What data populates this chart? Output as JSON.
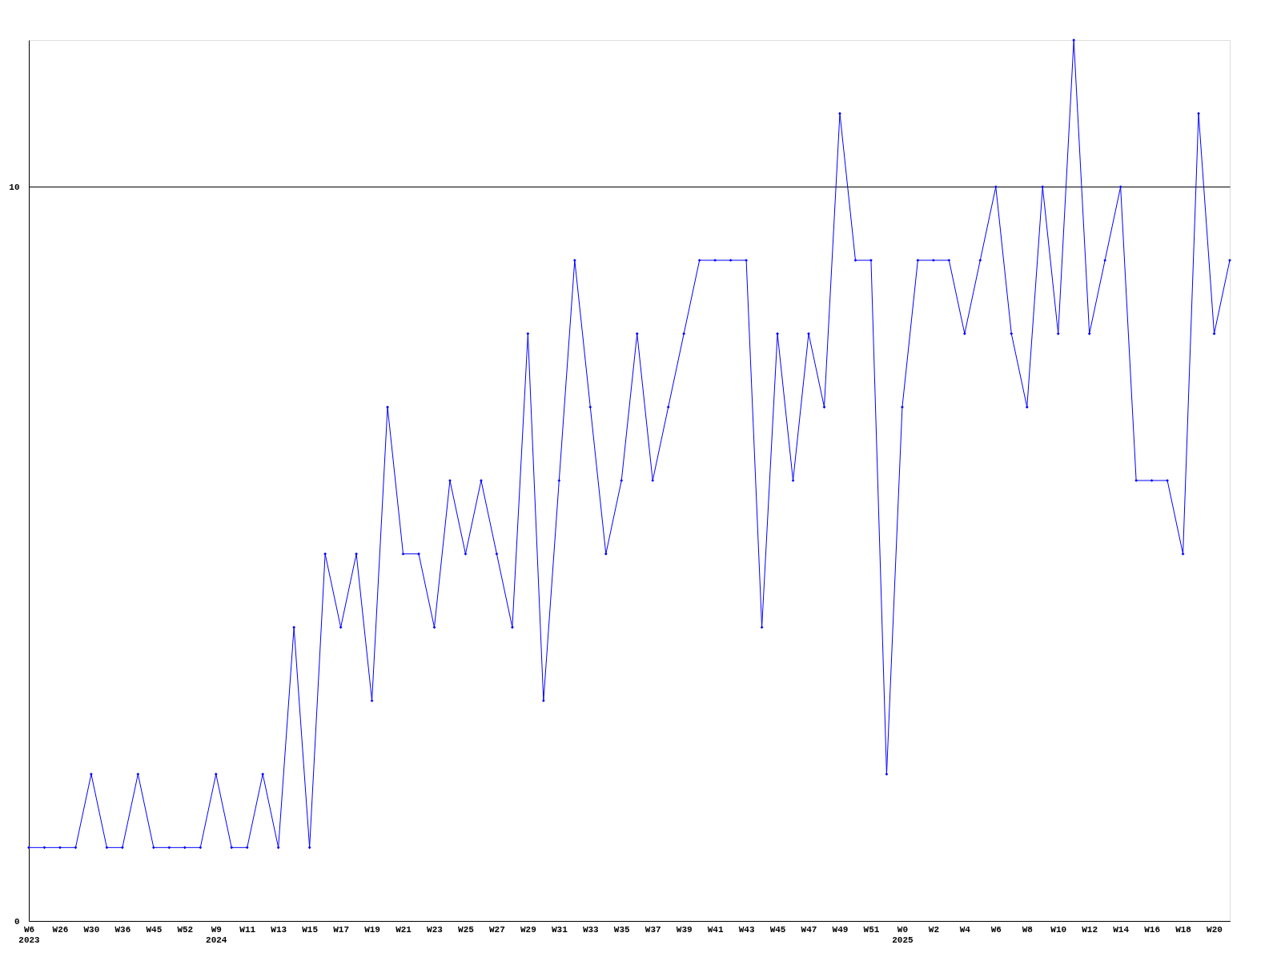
{
  "chart_data": {
    "type": "line",
    "categories": [
      "W6\n2023",
      null,
      "W26",
      null,
      "W30",
      null,
      "W36",
      null,
      "W45",
      null,
      "W52",
      null,
      "W9\n2024",
      null,
      "W11",
      null,
      "W13",
      null,
      "W15",
      null,
      "W17",
      null,
      "W19",
      null,
      "W21",
      null,
      "W23",
      null,
      "W25",
      null,
      "W27",
      null,
      "W29",
      null,
      "W31",
      null,
      "W33",
      null,
      "W35",
      null,
      "W37",
      null,
      "W39",
      null,
      "W41",
      null,
      "W43",
      null,
      "W45",
      null,
      "W47",
      null,
      "W49",
      null,
      "W51",
      null,
      "W0\n2025",
      null,
      "W2",
      null,
      "W4",
      null,
      "W6",
      null,
      "W8",
      null,
      "W10",
      null,
      "W12",
      null,
      "W14",
      null,
      "W16",
      null,
      "W18",
      null,
      "W20",
      null
    ],
    "series": [
      {
        "color": "#0000ff",
        "values": [
          1,
          1,
          1,
          1,
          2,
          1,
          1,
          2,
          1,
          1,
          1,
          1,
          2,
          1,
          1,
          2,
          1,
          4,
          1,
          5,
          4,
          5,
          3,
          7,
          5,
          5,
          4,
          6,
          5,
          6,
          5,
          4,
          8,
          3,
          6,
          9,
          7,
          5,
          6,
          8,
          6,
          7,
          8,
          9,
          9,
          9,
          9,
          4,
          8,
          6,
          8,
          7,
          11,
          9,
          9,
          2,
          7,
          9,
          9,
          9,
          8,
          9,
          10,
          8,
          7,
          10,
          8,
          12,
          8,
          9,
          10,
          6,
          6,
          6,
          5,
          11,
          8,
          9
        ]
      }
    ],
    "ylim": [
      0,
      12
    ],
    "yticks": [
      0,
      10
    ],
    "grid": "y",
    "marker": "diamond",
    "line_style": "solid"
  }
}
